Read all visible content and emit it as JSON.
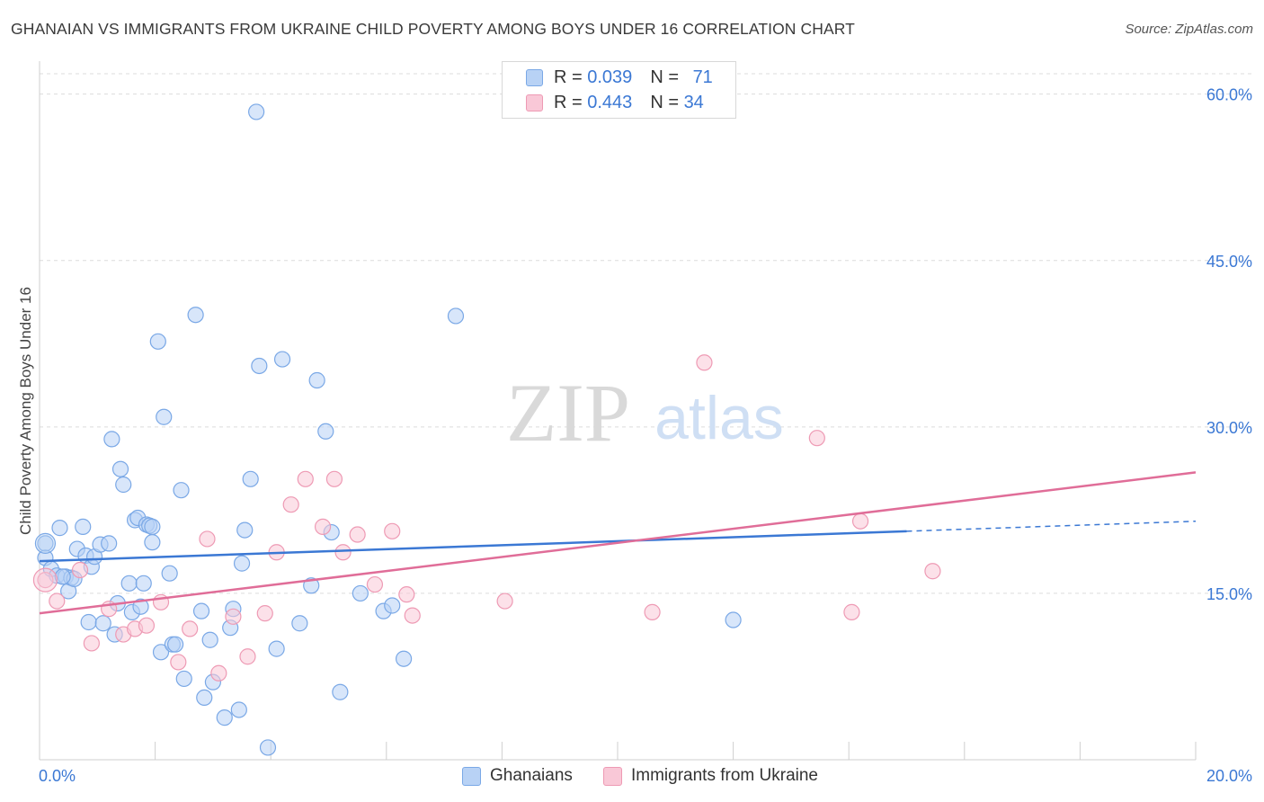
{
  "header": {
    "title": "GHANAIAN VS IMMIGRANTS FROM UKRAINE CHILD POVERTY AMONG BOYS UNDER 16 CORRELATION CHART",
    "source": "Source: ZipAtlas.com"
  },
  "watermark": {
    "zip": "ZIP",
    "atlas": "atlas"
  },
  "legend": {
    "rows": [
      {
        "r_label": "R = ",
        "r_value": "0.039",
        "n_label": "N = ",
        "n_value": "71",
        "fill": "#b8d2f5",
        "stroke": "#7aa8e6"
      },
      {
        "r_label": "R = ",
        "r_value": "0.443",
        "n_label": "N = ",
        "n_value": "34",
        "fill": "#f9c8d7",
        "stroke": "#ee9ab4"
      }
    ]
  },
  "bottom_legend": {
    "items": [
      {
        "label": "Ghanaians",
        "fill": "#b8d2f5",
        "stroke": "#7aa8e6"
      },
      {
        "label": "Immigrants from Ukraine",
        "fill": "#f9c8d7",
        "stroke": "#ee9ab4"
      }
    ]
  },
  "chart_data": {
    "type": "scatter",
    "ylabel": "Child Poverty Among Boys Under 16",
    "xlabel": "",
    "xlim": [
      0,
      20
    ],
    "ylim": [
      0,
      62
    ],
    "x_tick_labels": [
      "0.0%",
      "20.0%"
    ],
    "y_ticks": [
      {
        "value": 15,
        "label": "15.0%"
      },
      {
        "value": 30,
        "label": "30.0%"
      },
      {
        "value": 45,
        "label": "45.0%"
      },
      {
        "value": 60,
        "label": "60.0%"
      }
    ],
    "grid": true,
    "colors": {
      "ghanaians": "#3b78d4",
      "ukraine": "#e06d98",
      "tick_label": "#3b78d4"
    },
    "series": [
      {
        "name": "Ghanaians",
        "color": "#3b78d4",
        "points": [
          [
            0.1,
            19.5
          ],
          [
            0.1,
            18.2
          ],
          [
            0.2,
            17.2
          ],
          [
            0.3,
            16.6
          ],
          [
            0.35,
            20.9
          ],
          [
            0.45,
            16.5
          ],
          [
            0.5,
            15.2
          ],
          [
            0.55,
            16.4
          ],
          [
            0.65,
            19.0
          ],
          [
            0.75,
            21.0
          ],
          [
            0.8,
            18.4
          ],
          [
            0.85,
            12.4
          ],
          [
            0.9,
            17.4
          ],
          [
            0.95,
            18.3
          ],
          [
            1.05,
            19.4
          ],
          [
            1.1,
            12.3
          ],
          [
            1.2,
            19.5
          ],
          [
            1.25,
            28.9
          ],
          [
            1.3,
            11.3
          ],
          [
            1.35,
            14.1
          ],
          [
            1.4,
            26.2
          ],
          [
            1.45,
            24.8
          ],
          [
            1.55,
            15.9
          ],
          [
            1.6,
            13.3
          ],
          [
            1.65,
            21.6
          ],
          [
            1.7,
            21.8
          ],
          [
            1.75,
            13.8
          ],
          [
            1.8,
            15.9
          ],
          [
            1.85,
            21.2
          ],
          [
            1.9,
            21.1
          ],
          [
            1.95,
            19.6
          ],
          [
            2.05,
            37.7
          ],
          [
            2.1,
            9.7
          ],
          [
            2.15,
            30.9
          ],
          [
            2.25,
            16.8
          ],
          [
            2.3,
            10.4
          ],
          [
            2.35,
            10.4
          ],
          [
            2.45,
            24.3
          ],
          [
            2.5,
            7.3
          ],
          [
            2.7,
            40.1
          ],
          [
            2.8,
            13.4
          ],
          [
            2.85,
            5.6
          ],
          [
            2.95,
            10.8
          ],
          [
            3.0,
            7.0
          ],
          [
            3.2,
            3.8
          ],
          [
            3.3,
            11.9
          ],
          [
            3.35,
            13.6
          ],
          [
            3.45,
            4.5
          ],
          [
            3.5,
            17.7
          ],
          [
            3.55,
            20.7
          ],
          [
            3.65,
            25.3
          ],
          [
            3.75,
            58.4
          ],
          [
            3.8,
            35.5
          ],
          [
            3.95,
            1.1
          ],
          [
            4.1,
            10.0
          ],
          [
            4.2,
            36.1
          ],
          [
            4.5,
            12.3
          ],
          [
            4.7,
            15.7
          ],
          [
            4.8,
            34.2
          ],
          [
            4.95,
            29.6
          ],
          [
            5.05,
            20.5
          ],
          [
            5.2,
            6.1
          ],
          [
            5.55,
            15.0
          ],
          [
            5.95,
            13.4
          ],
          [
            6.1,
            13.9
          ],
          [
            6.3,
            9.1
          ],
          [
            7.2,
            40.0
          ],
          [
            12.0,
            12.6
          ],
          [
            0.6,
            16.3
          ],
          [
            1.95,
            21.0
          ],
          [
            0.4,
            16.5
          ]
        ]
      },
      {
        "name": "Immigrants from Ukraine",
        "color": "#e06d98",
        "points": [
          [
            0.1,
            16.2
          ],
          [
            0.3,
            14.3
          ],
          [
            0.7,
            17.1
          ],
          [
            0.9,
            10.5
          ],
          [
            1.2,
            13.6
          ],
          [
            1.45,
            11.3
          ],
          [
            1.65,
            11.8
          ],
          [
            1.85,
            12.1
          ],
          [
            2.1,
            14.2
          ],
          [
            2.4,
            8.8
          ],
          [
            2.6,
            11.8
          ],
          [
            2.9,
            19.9
          ],
          [
            3.1,
            7.8
          ],
          [
            3.35,
            12.9
          ],
          [
            3.6,
            9.3
          ],
          [
            3.9,
            13.2
          ],
          [
            4.1,
            18.7
          ],
          [
            4.35,
            23.0
          ],
          [
            4.6,
            25.3
          ],
          [
            4.9,
            21.0
          ],
          [
            5.1,
            25.3
          ],
          [
            5.25,
            18.7
          ],
          [
            5.5,
            20.3
          ],
          [
            5.8,
            15.8
          ],
          [
            6.1,
            20.6
          ],
          [
            6.35,
            14.9
          ],
          [
            6.45,
            13.0
          ],
          [
            8.05,
            14.3
          ],
          [
            10.6,
            13.3
          ],
          [
            11.5,
            35.8
          ],
          [
            13.45,
            29.0
          ],
          [
            14.05,
            13.3
          ],
          [
            14.2,
            21.5
          ],
          [
            15.45,
            17.0
          ]
        ]
      }
    ],
    "trend_lines": [
      {
        "series": "Ghanaians",
        "x0": 0,
        "y0": 17.9,
        "x1": 15.0,
        "y1": 20.6,
        "dashed_to_x": 20,
        "dashed_to_y": 21.5
      },
      {
        "series": "Immigrants from Ukraine",
        "x0": 0,
        "y0": 13.2,
        "x1": 20,
        "y1": 25.9
      }
    ]
  }
}
